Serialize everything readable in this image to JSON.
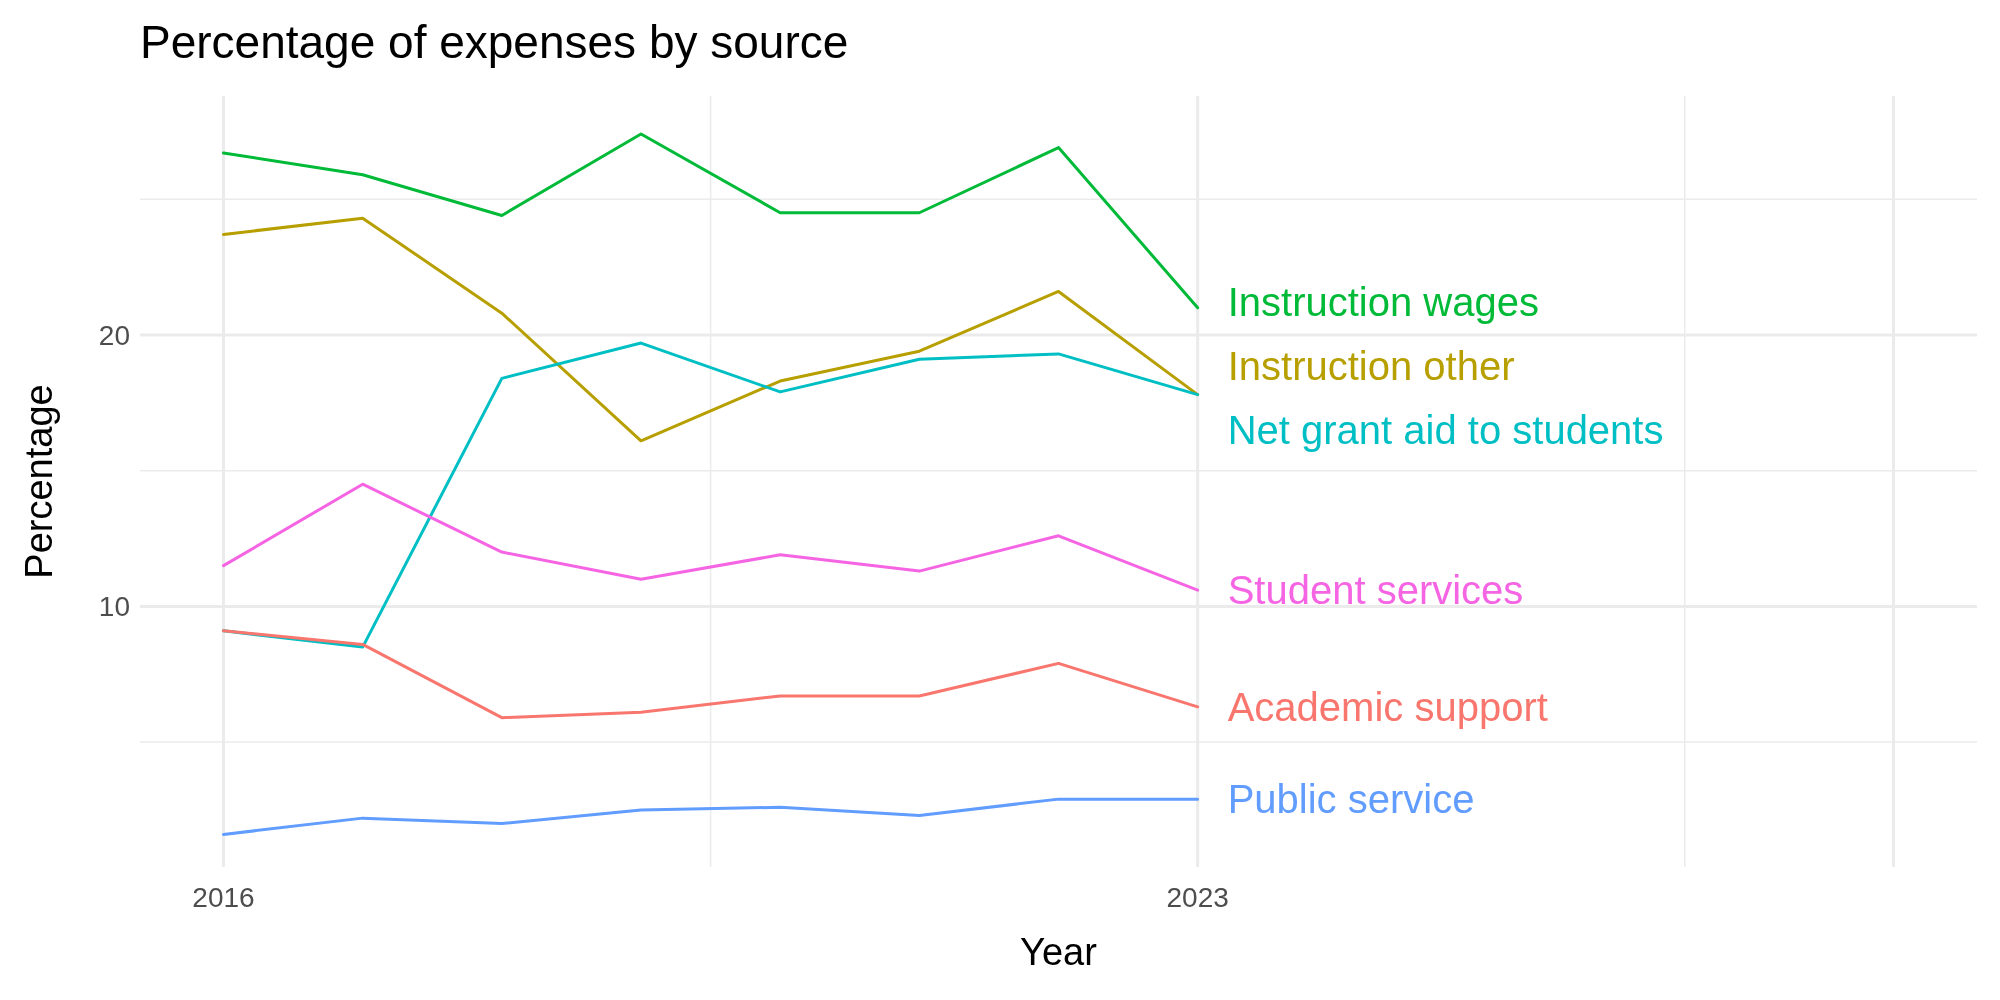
{
  "chart_data": {
    "type": "line",
    "title": "Percentage of expenses by source",
    "xlabel": "Year",
    "ylabel": "Percentage",
    "x": [
      2016,
      2017,
      2018,
      2019,
      2020,
      2021,
      2022,
      2023
    ],
    "xlim": [
      2015.4,
      2028.6
    ],
    "xticks": [
      2016,
      {
        "value": 2019.5,
        "label": null
      },
      2023,
      {
        "value": 2026.5,
        "label": null
      },
      {
        "value": 2028,
        "label": null
      }
    ],
    "ylim": [
      0.4,
      28.8
    ],
    "yticks": [
      {
        "value": 5,
        "label": null
      },
      10,
      {
        "value": 15,
        "label": null
      },
      20,
      {
        "value": 25,
        "label": null
      }
    ],
    "grid": true,
    "legend": false,
    "marker": "none",
    "line_style": "solid",
    "series": [
      {
        "name": "Instruction wages",
        "color": "#00ba38",
        "values": [
          26.7,
          25.9,
          24.4,
          27.4,
          24.5,
          24.5,
          26.9,
          21.0
        ]
      },
      {
        "name": "Instruction other",
        "color": "#b79f00",
        "values": [
          23.7,
          24.3,
          20.8,
          16.1,
          18.3,
          19.4,
          21.6,
          17.8
        ]
      },
      {
        "name": "Net grant aid to students",
        "color": "#00bfc4",
        "values": [
          9.1,
          8.5,
          18.4,
          19.7,
          17.9,
          19.1,
          19.3,
          17.8
        ]
      },
      {
        "name": "Student services",
        "color": "#f564e3",
        "values": [
          11.5,
          14.5,
          12.0,
          11.0,
          11.9,
          11.3,
          12.6,
          10.6
        ]
      },
      {
        "name": "Academic support",
        "color": "#f8766d",
        "values": [
          9.1,
          8.6,
          5.9,
          6.1,
          6.7,
          6.7,
          7.9,
          6.3
        ]
      },
      {
        "name": "Public service",
        "color": "#619cff",
        "values": [
          1.6,
          2.2,
          2.0,
          2.5,
          2.6,
          2.3,
          2.9,
          2.9
        ]
      }
    ]
  }
}
